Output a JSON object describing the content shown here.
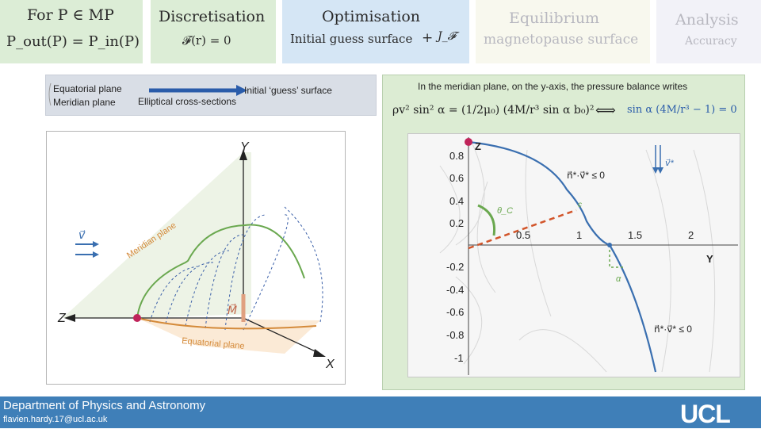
{
  "steps": {
    "for": {
      "title": "For P ∈ MP",
      "equation": "P_out(P) = P_in(P)"
    },
    "discretisation": {
      "title": "Discretisation",
      "equation": "𝓕(r) = 0"
    },
    "optimisation": {
      "title": "Optimisation",
      "sub": "Initial guess surface",
      "plus": "+",
      "jacobian": "J_𝓕"
    },
    "equilibrium": {
      "title": "Equilibrium",
      "sub": "magnetopause surface"
    },
    "analysis": {
      "title": "Analysis",
      "sub": "Accuracy"
    }
  },
  "legend": {
    "equatorial": "Equatorial plane",
    "meridian": "Meridian plane",
    "elliptical": "Elliptical cross-sections",
    "initial_guess": "Initial ‘guess’ surface"
  },
  "left_figure": {
    "axis_y": "Y",
    "axis_z": "Z",
    "axis_x": "X",
    "meridian_label": "Meridian plane",
    "equatorial_label": "Equatorial plane",
    "velocity": "v⃗",
    "m_vector": "M⃗"
  },
  "right_panel": {
    "heading": "In the meridian plane, on the y-axis, the pressure balance writes",
    "equation_left": "ρv² sin² α = (1/2μ₀) (4M/r³ sin α  b₀)²",
    "iff": "⟺",
    "equation_right": "sin α (4M/r³ − 1) = 0",
    "plot": {
      "z_axis": "Z",
      "y_axis": "Y",
      "y_ticks": [
        "0.8",
        "0.6",
        "0.4",
        "0.2",
        "-0.2",
        "-0.4",
        "-0.6",
        "-0.8",
        "-1"
      ],
      "x_ticks": [
        "0.5",
        "1",
        "1.5",
        "2"
      ],
      "condition_top": "n⃗*·v⃗* ≤ 0",
      "condition_bottom": "n⃗*·v⃗* ≤ 0",
      "v_star": "v⃗*",
      "theta_c": "θ_C",
      "c_label": "c",
      "alpha_label": "α"
    }
  },
  "footer": {
    "department": "Department of Physics and Astronomy",
    "email": "flavien.hardy.17@ucl.ac.uk",
    "logo": "UCL"
  },
  "colors": {
    "green_box": "#dcedd6",
    "blue_box": "#d5e6f5",
    "footer": "#3f7fb8",
    "curve_blue": "#3a6fb0",
    "dashed_orange": "#d2552a",
    "green_curve": "#6aa84f",
    "point_red": "#c0245a"
  }
}
